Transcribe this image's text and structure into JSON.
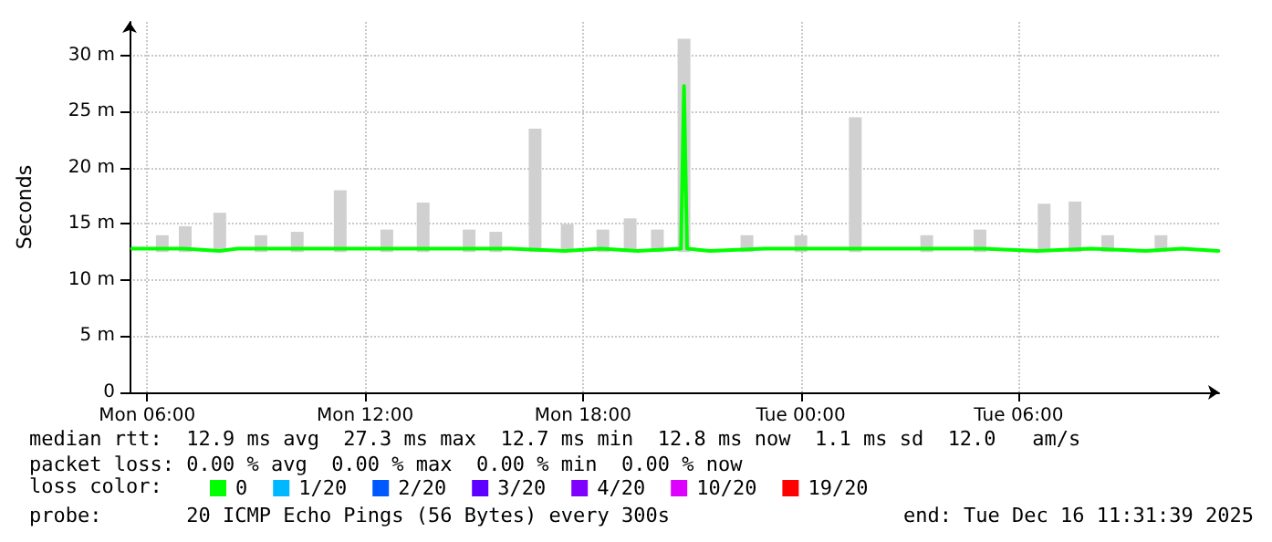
{
  "chart_data": {
    "type": "line",
    "ylabel": "Seconds",
    "legend_title": "loss color:",
    "legend": "bottom left",
    "grid": true,
    "marker": "none",
    "line_style": "solid",
    "xlim": [
      "2025-12-15T05:31",
      "2025-12-16T11:31"
    ],
    "xticks": [
      {
        "value": "2025-12-15T06:00",
        "label": "Mon 06:00"
      },
      {
        "value": "2025-12-15T12:00",
        "label": "Mon 12:00"
      },
      {
        "value": "2025-12-15T18:00",
        "label": "Mon 18:00"
      },
      {
        "value": "2025-12-16T00:00",
        "label": "Tue 00:00"
      },
      {
        "value": "2025-12-16T06:00",
        "label": "Tue 06:00"
      }
    ],
    "ylim": [
      0,
      33
    ],
    "yticks": [
      0,
      {
        "value": 5,
        "label": "5 m"
      },
      {
        "value": 10,
        "label": "10 m"
      },
      {
        "value": 15,
        "label": "15 m"
      },
      {
        "value": 20,
        "label": "20 m"
      },
      {
        "value": 25,
        "label": "25 m"
      },
      {
        "value": 30,
        "label": "30 m"
      }
    ],
    "series": [
      {
        "type": "bar",
        "color": "#d0d0d0",
        "x": [
          "2025-12-15T06:25",
          "2025-12-15T07:03",
          "2025-12-15T08:00",
          "2025-12-15T09:08",
          "2025-12-15T10:08",
          "2025-12-15T11:19",
          "2025-12-15T12:36",
          "2025-12-15T13:36",
          "2025-12-15T14:52",
          "2025-12-15T15:36",
          "2025-12-15T16:41",
          "2025-12-15T17:34",
          "2025-12-15T18:33",
          "2025-12-15T19:18",
          "2025-12-15T20:03",
          "2025-12-15T20:47",
          "2025-12-15T22:31",
          "2025-12-16T00:00",
          "2025-12-16T01:30",
          "2025-12-16T03:28",
          "2025-12-16T04:56",
          "2025-12-16T06:42",
          "2025-12-16T07:33",
          "2025-12-16T08:27",
          "2025-12-16T09:55"
        ],
        "base": [
          12.5,
          12.5,
          12.5,
          12.5,
          12.5,
          12.5,
          12.5,
          12.5,
          12.5,
          12.5,
          12.5,
          12.5,
          12.5,
          12.5,
          12.5,
          12.5,
          12.5,
          12.5,
          12.5,
          12.5,
          12.5,
          12.5,
          12.5,
          12.5,
          12.5
        ],
        "values": [
          1.5,
          2.3,
          3.5,
          1.5,
          1.8,
          5.5,
          2,
          4.4,
          2,
          1.8,
          11,
          2.5,
          2,
          3,
          2,
          19,
          1.5,
          1.5,
          12,
          1.5,
          2,
          4.3,
          4.5,
          1.5,
          1.5
        ]
      },
      {
        "name": "0",
        "color": "#00ff00",
        "x": [
          "2025-12-15T05:35",
          "2025-12-15T07:00",
          "2025-12-15T08:00",
          "2025-12-15T08:30",
          "2025-12-15T10:00",
          "2025-12-15T12:00",
          "2025-12-15T14:00",
          "2025-12-15T16:00",
          "2025-12-15T17:30",
          "2025-12-15T18:30",
          "2025-12-15T19:30",
          "2025-12-15T20:42",
          "2025-12-15T20:47",
          "2025-12-15T20:52",
          "2025-12-15T21:30",
          "2025-12-15T23:00",
          "2025-12-16T01:00",
          "2025-12-16T03:00",
          "2025-12-16T05:00",
          "2025-12-16T06:30",
          "2025-12-16T08:00",
          "2025-12-16T09:30",
          "2025-12-16T10:30",
          "2025-12-16T11:30"
        ],
        "values": [
          12.8,
          12.8,
          12.6,
          12.8,
          12.8,
          12.8,
          12.8,
          12.8,
          12.6,
          12.8,
          12.6,
          12.8,
          27.3,
          12.8,
          12.6,
          12.8,
          12.8,
          12.8,
          12.8,
          12.6,
          12.8,
          12.6,
          12.8,
          12.6
        ]
      },
      {
        "name": "1/20",
        "color": "#00b8ff"
      },
      {
        "name": "2/20",
        "color": "#0059ff"
      },
      {
        "name": "3/20",
        "color": "#5e00ff"
      },
      {
        "name": "4/20",
        "color": "#7e00ff"
      },
      {
        "name": "10/20",
        "color": "#dd00ff"
      },
      {
        "name": "19/20",
        "color": "#ff0000"
      }
    ],
    "annotations": [
      "median rtt:  12.9 ms avg  27.3 ms max  12.7 ms min  12.8 ms now  1.1 ms sd  12.0   am/s",
      "packet loss: 0.00 % avg  0.00 % max  0.00 % min  0.00 % now",
      "probe:       20 ICMP Echo Pings (56 Bytes) every 300s",
      "end: Tue Dec 16 11:31:39 2025"
    ]
  }
}
